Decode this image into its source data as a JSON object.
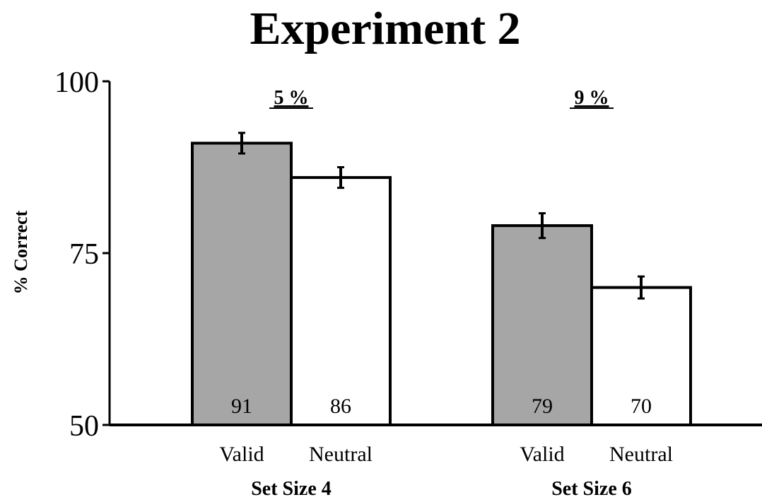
{
  "chart_data": {
    "type": "bar",
    "title": "Experiment 2",
    "ylabel": "% Correct",
    "xlabel": "",
    "ylim": [
      50,
      100
    ],
    "yticks": [
      50,
      75,
      100
    ],
    "grid": false,
    "legend": "none",
    "groups": [
      {
        "label": "Set Size 4",
        "difference_label": "5 %",
        "bars": [
          {
            "category": "Valid",
            "value": 91,
            "value_label": "91",
            "error": 1.5,
            "color": "#a6a6a6"
          },
          {
            "category": "Neutral",
            "value": 86,
            "value_label": "86",
            "error": 1.5,
            "color": "#ffffff"
          }
        ]
      },
      {
        "label": "Set Size 6",
        "difference_label": "9 %",
        "bars": [
          {
            "category": "Valid",
            "value": 79,
            "value_label": "79",
            "error": 1.8,
            "color": "#a6a6a6"
          },
          {
            "category": "Neutral",
            "value": 70,
            "value_label": "70",
            "error": 1.6,
            "color": "#ffffff"
          }
        ]
      }
    ]
  }
}
